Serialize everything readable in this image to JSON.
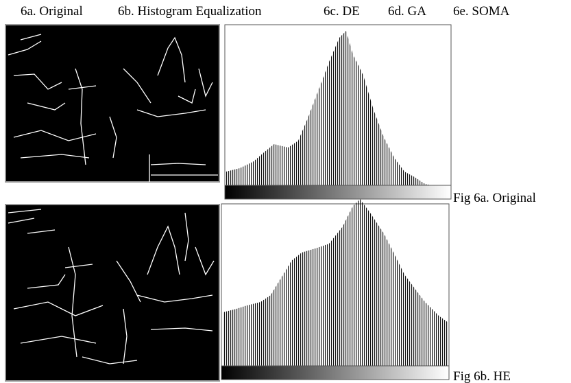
{
  "header": {
    "labels": [
      "6a. Original",
      "6b. Histogram Equalization",
      "6c. DE",
      "6d. GA",
      "6e. SOMA"
    ]
  },
  "figures": [
    {
      "caption": "Fig 6a. Original"
    },
    {
      "caption": "Fig 6b. HE"
    }
  ]
}
